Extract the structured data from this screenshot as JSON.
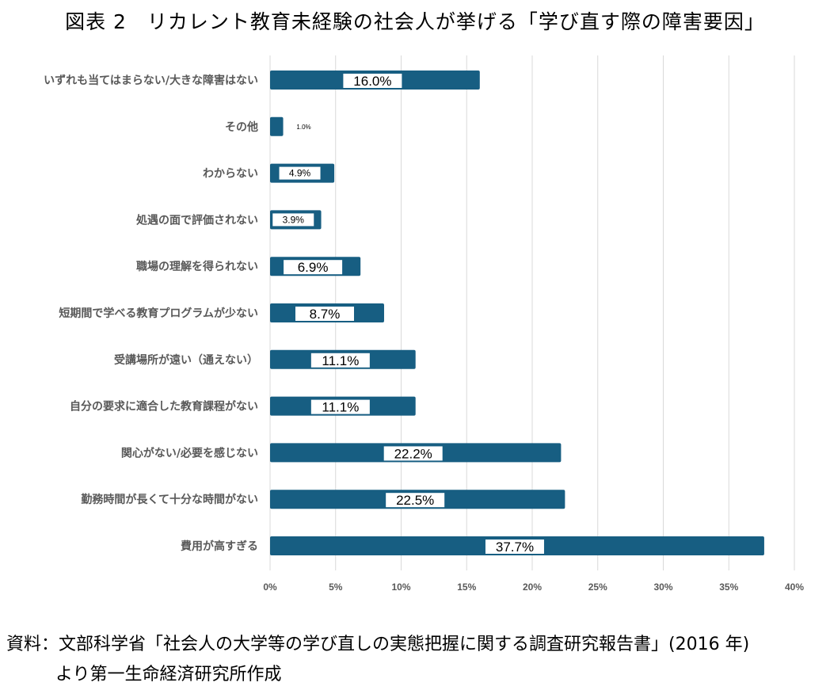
{
  "chart_data": {
    "type": "bar",
    "orientation": "horizontal",
    "title": "図表 2　リカレント教育未経験の社会人が挙げる「学び直す際の障害要因」",
    "categories": [
      "いずれも当てはまらない/大きな障害はない",
      "その他",
      "わからない",
      "処遇の面で評価されない",
      "職場の理解を得られない",
      "短期間で学べる教育プログラムが少ない",
      "受講場所が遠い（通えない）",
      "自分の要求に適合した教育課程がない",
      "関心がない/必要を感じない",
      "勤務時間が長くて十分な時間がない",
      "費用が高すぎる"
    ],
    "values": [
      16.0,
      1.0,
      4.9,
      3.9,
      6.9,
      8.7,
      11.1,
      11.1,
      22.2,
      22.5,
      37.7
    ],
    "data_labels": [
      "16.0%",
      "1.0%",
      "4.9%",
      "3.9%",
      "6.9%",
      "8.7%",
      "11.1%",
      "11.1%",
      "22.2%",
      "22.5%",
      "37.7%"
    ],
    "xlim": [
      0,
      40
    ],
    "x_ticks": [
      "0%",
      "5%",
      "10%",
      "15%",
      "20%",
      "25%",
      "30%",
      "35%",
      "40%"
    ],
    "grid": "vertical",
    "bar_color": "#175e82",
    "xlabel": "",
    "ylabel": ""
  },
  "source": {
    "line1": "資料：文部科学省「社会人の大学等の学び直しの実態把握に関する調査研究報告書」(2016 年)",
    "line2": "より第一生命経済研究所作成"
  }
}
